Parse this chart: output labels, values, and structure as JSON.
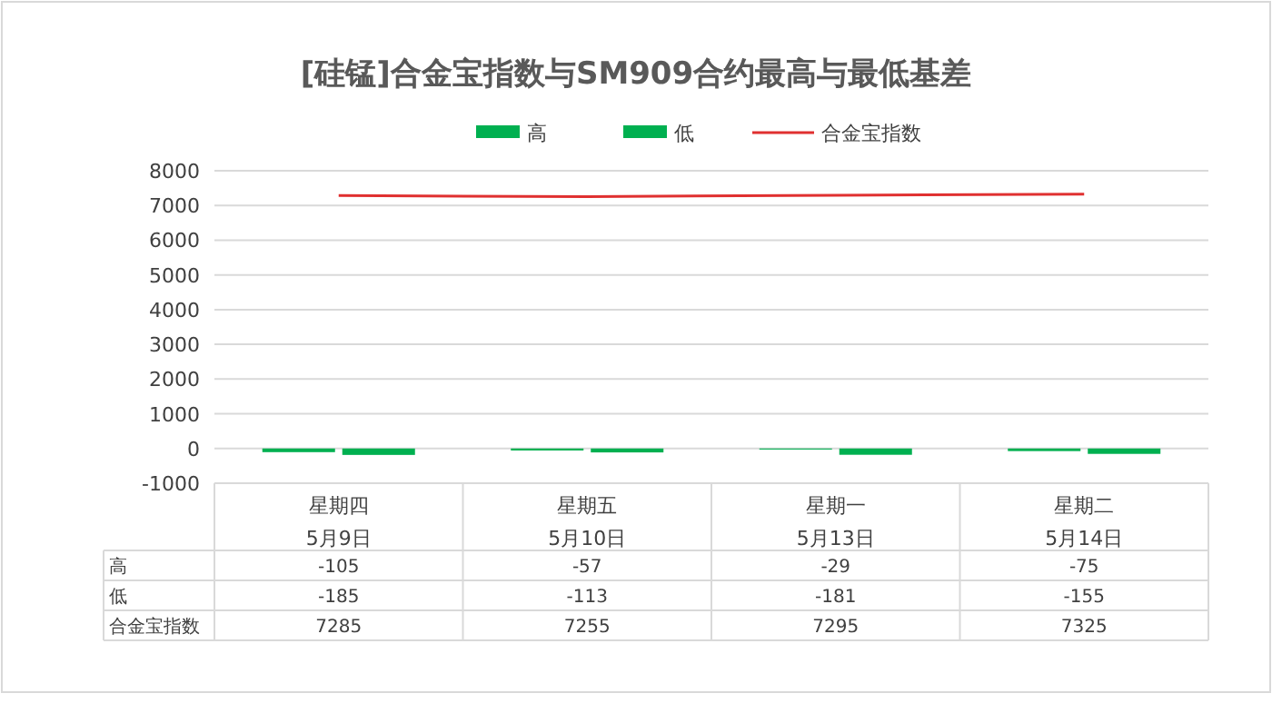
{
  "chart_data": {
    "type": "bar",
    "title": "[硅锰]合金宝指数与SM909合约最高与最低基差",
    "categories": [
      "星期四\n5月9日",
      "星期五\n5月10日",
      "星期一\n5月13日",
      "星期二\n5月14日"
    ],
    "series": [
      {
        "name": "高",
        "color": "#00b050",
        "values": [
          -105,
          -57,
          -29,
          -75
        ]
      },
      {
        "name": "低",
        "color": "#00b050",
        "values": [
          -185,
          -113,
          -181,
          -155
        ]
      },
      {
        "name": "合金宝指数",
        "type": "line",
        "color": "#e03030",
        "values": [
          7285,
          7255,
          7295,
          7325
        ]
      }
    ],
    "ylim": [
      -1000,
      8000
    ],
    "yticks": [
      -1000,
      0,
      1000,
      2000,
      3000,
      4000,
      5000,
      6000,
      7000,
      8000
    ],
    "grid": "y",
    "legend": "top",
    "data_labels": true
  }
}
